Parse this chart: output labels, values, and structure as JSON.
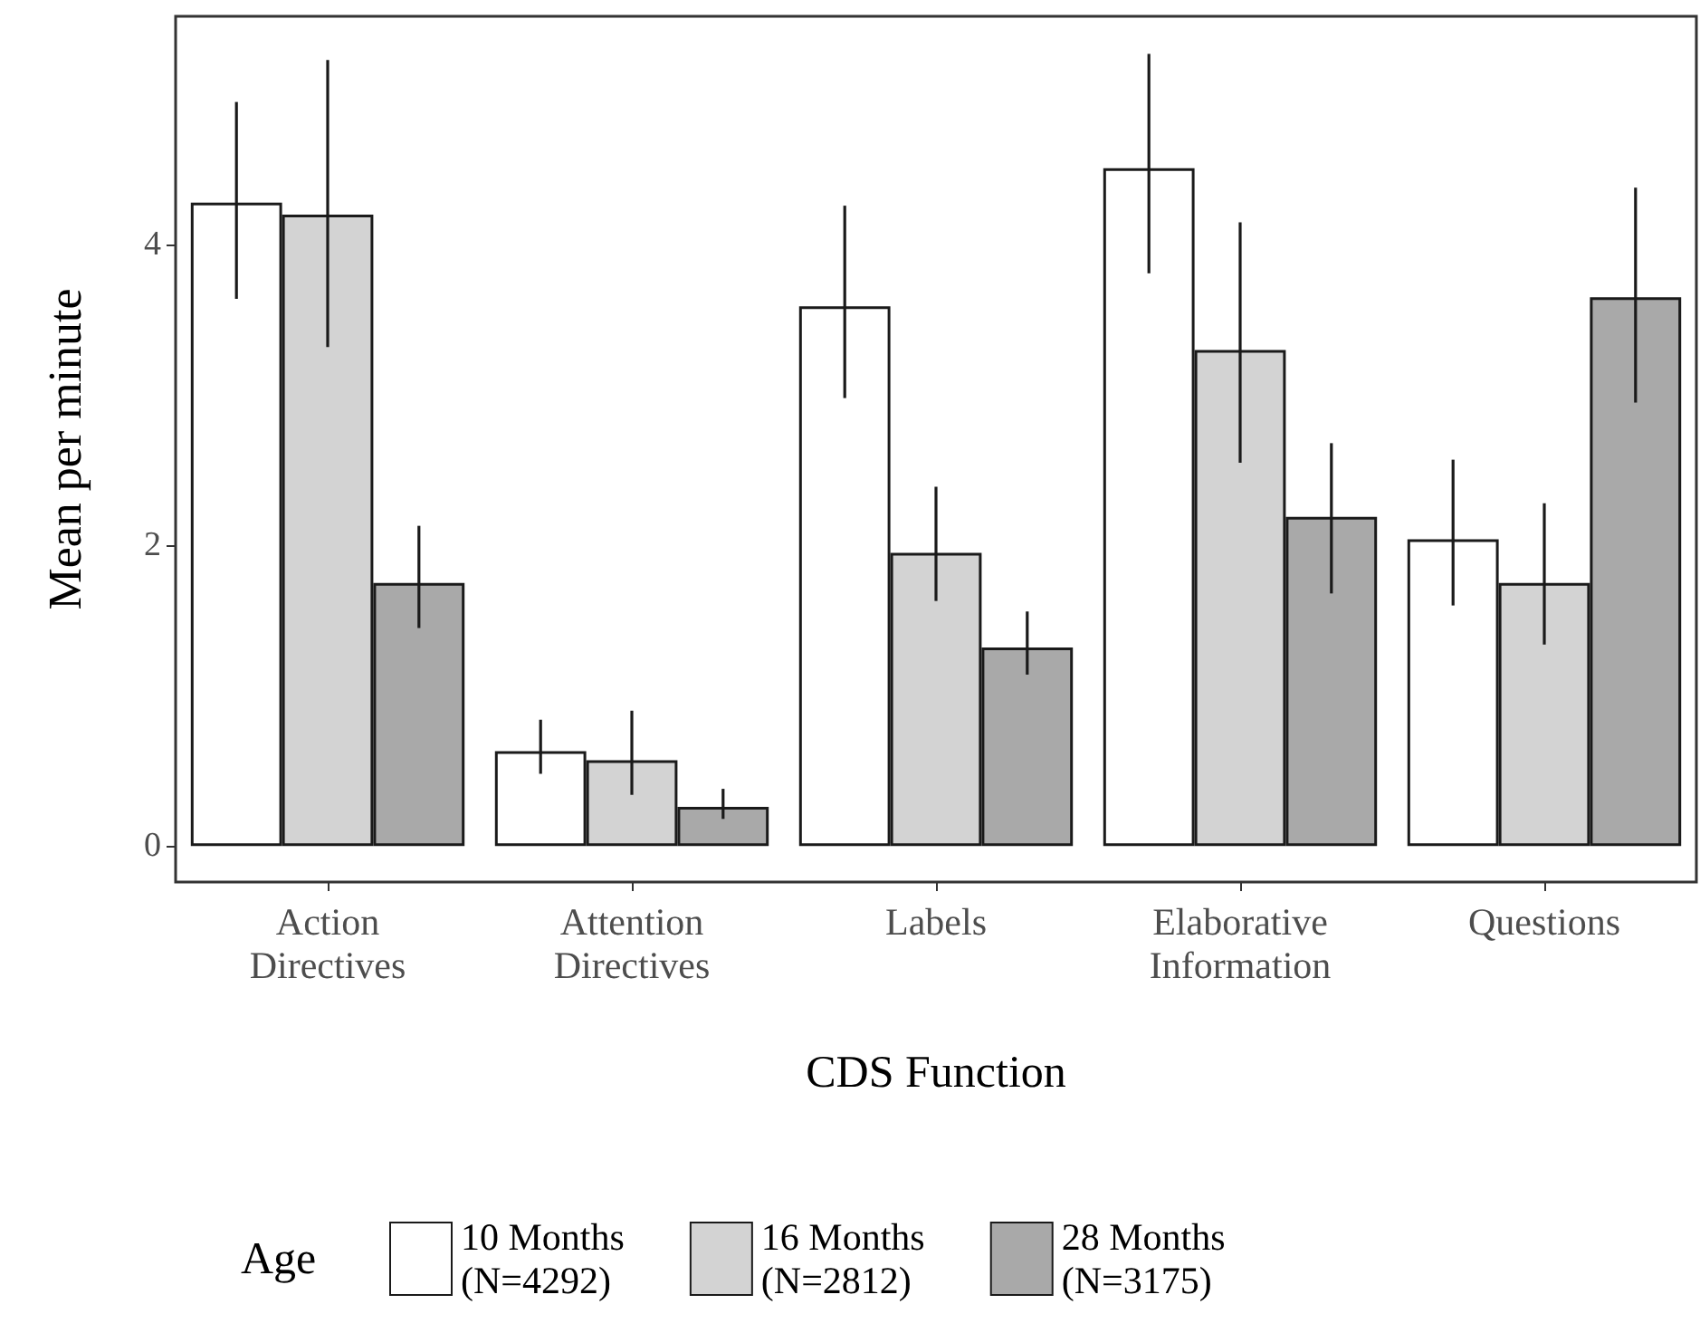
{
  "chart_data": {
    "type": "bar",
    "categories": [
      "Action\nDirectives",
      "Attention\nDirectives",
      "Labels",
      "Elaborative\nInformation",
      "Questions"
    ],
    "series": [
      {
        "name": "10 Months\n(N=4292)",
        "color": "#ffffff",
        "values": [
          4.28,
          0.63,
          3.59,
          4.51,
          2.04
        ],
        "errors": [
          [
            3.64,
            4.95
          ],
          [
            0.48,
            0.84
          ],
          [
            2.98,
            4.26
          ],
          [
            3.81,
            5.27
          ],
          [
            1.6,
            2.57
          ]
        ]
      },
      {
        "name": "16 Months\n(N=2812)",
        "color": "#d3d3d3",
        "values": [
          4.2,
          0.57,
          1.95,
          3.3,
          1.75
        ],
        "errors": [
          [
            3.32,
            5.23
          ],
          [
            0.34,
            0.9
          ],
          [
            1.63,
            2.39
          ],
          [
            2.55,
            4.15
          ],
          [
            1.34,
            2.28
          ]
        ]
      },
      {
        "name": "28 Months\n(N=3175)",
        "color": "#a9a9a9",
        "values": [
          1.75,
          0.26,
          1.32,
          2.19,
          3.65
        ],
        "errors": [
          [
            1.45,
            2.13
          ],
          [
            0.18,
            0.38
          ],
          [
            1.14,
            1.56
          ],
          [
            1.68,
            2.68
          ],
          [
            2.95,
            4.38
          ]
        ]
      }
    ],
    "xlabel": "CDS Function",
    "ylabel": "Mean per minute",
    "legend_title": "Age",
    "legend": "bottom",
    "ylim": [
      -0.24,
      5.52
    ],
    "yticks": [
      0,
      2,
      4
    ]
  }
}
